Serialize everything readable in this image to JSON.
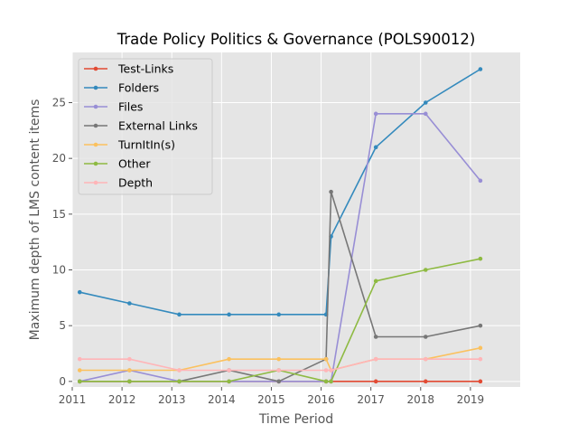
{
  "chart_data": {
    "type": "line",
    "title": "Trade Policy Politics & Governance (POLS90012)",
    "xlabel": "Time Period",
    "ylabel": "Maximum depth of LMS content items",
    "xlim": [
      2011,
      2020
    ],
    "ylim": [
      -0.5,
      29.5
    ],
    "x_ticks": [
      "2011",
      "2012",
      "2013",
      "2014",
      "2015",
      "2016",
      "2017",
      "2018",
      "2019"
    ],
    "y_ticks": [
      "0",
      "5",
      "10",
      "15",
      "20",
      "25"
    ],
    "grid": true,
    "legend_position": "upper-left",
    "series": [
      {
        "name": "Test-Links",
        "color": "#e24a33",
        "x": [
          2011.15,
          2012.15,
          2013.15,
          2014.15,
          2015.15,
          2016.1,
          2016.2,
          2017.1,
          2018.1,
          2019.2
        ],
        "y": [
          0,
          0,
          0,
          0,
          0,
          0,
          0,
          0,
          0,
          0
        ]
      },
      {
        "name": "Folders",
        "color": "#348abd",
        "x": [
          2011.15,
          2012.15,
          2013.15,
          2014.15,
          2015.15,
          2016.1,
          2016.2,
          2017.1,
          2018.1,
          2019.2
        ],
        "y": [
          8,
          7,
          6,
          6,
          6,
          6,
          13,
          21,
          25,
          28
        ]
      },
      {
        "name": "Files",
        "color": "#988ed5",
        "x": [
          2011.15,
          2012.15,
          2013.15,
          2014.15,
          2015.15,
          2016.1,
          2016.2,
          2017.1,
          2018.1,
          2019.2
        ],
        "y": [
          0,
          1,
          0,
          0,
          0,
          0,
          0,
          24,
          24,
          18
        ]
      },
      {
        "name": "External Links",
        "color": "#777777",
        "x": [
          2011.15,
          2012.15,
          2013.15,
          2014.15,
          2015.15,
          2016.1,
          2016.2,
          2017.1,
          2018.1,
          2019.2
        ],
        "y": [
          0,
          0,
          0,
          1,
          0,
          2,
          17,
          4,
          4,
          5
        ]
      },
      {
        "name": "TurnItIn(s)",
        "color": "#fbc15e",
        "x": [
          2011.15,
          2012.15,
          2013.15,
          2014.15,
          2015.15,
          2016.1,
          2016.2,
          2017.1,
          2018.1,
          2019.2
        ],
        "y": [
          1,
          1,
          1,
          2,
          2,
          2,
          1,
          2,
          2,
          3
        ]
      },
      {
        "name": "Other",
        "color": "#8eba42",
        "x": [
          2011.15,
          2012.15,
          2013.15,
          2014.15,
          2015.15,
          2016.1,
          2016.2,
          2017.1,
          2018.1,
          2019.2
        ],
        "y": [
          0,
          0,
          0,
          0,
          1,
          0,
          0,
          9,
          10,
          11
        ]
      },
      {
        "name": "Depth",
        "color": "#ffb5b8",
        "x": [
          2011.15,
          2012.15,
          2013.15,
          2014.15,
          2015.15,
          2016.1,
          2016.2,
          2017.1,
          2018.1,
          2019.2
        ],
        "y": [
          2,
          2,
          1,
          1,
          1,
          1,
          1,
          2,
          2,
          2
        ]
      }
    ]
  }
}
